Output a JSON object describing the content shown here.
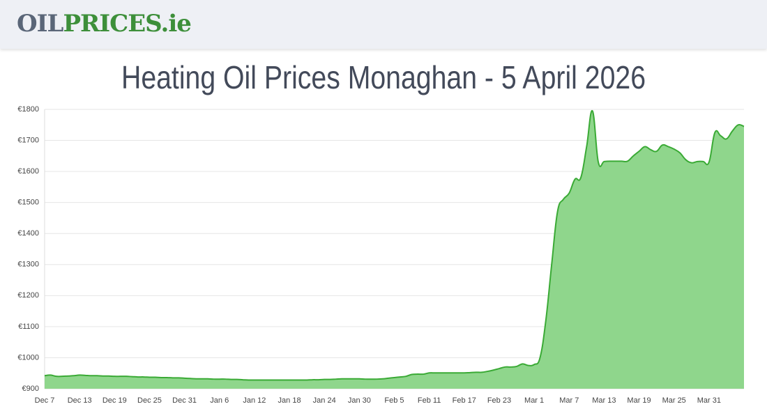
{
  "header": {
    "logo_part1": "OIL",
    "logo_part2": "PRICES.ie"
  },
  "chart_data": {
    "type": "area",
    "title": "Heating Oil Prices Monaghan - 5 April 2026",
    "categories": [
      "Dec 7",
      null,
      null,
      null,
      null,
      null,
      "Dec 13",
      null,
      null,
      null,
      null,
      null,
      "Dec 19",
      null,
      null,
      null,
      null,
      null,
      "Dec 25",
      null,
      null,
      null,
      null,
      null,
      "Dec 31",
      null,
      null,
      null,
      null,
      null,
      "Jan 6",
      null,
      null,
      null,
      null,
      null,
      "Jan 12",
      null,
      null,
      null,
      null,
      null,
      "Jan 18",
      null,
      null,
      null,
      null,
      null,
      "Jan 24",
      null,
      null,
      null,
      null,
      null,
      "Jan 30",
      null,
      null,
      null,
      null,
      null,
      "Feb 5",
      null,
      null,
      null,
      null,
      null,
      "Feb 11",
      null,
      null,
      null,
      null,
      null,
      "Feb 17",
      null,
      null,
      null,
      null,
      null,
      "Feb 23",
      null,
      null,
      null,
      null,
      null,
      "Mar 1",
      null,
      null,
      null,
      null,
      null,
      "Mar 7",
      null,
      null,
      null,
      null,
      null,
      "Mar 13",
      null,
      null,
      null,
      null,
      null,
      "Mar 19",
      null,
      null,
      null,
      null,
      null,
      "Mar 25",
      null,
      null,
      null,
      null,
      null,
      "Mar 31",
      null,
      null,
      null,
      null,
      null,
      null
    ],
    "values": [
      942,
      944,
      940,
      940,
      941,
      942,
      944,
      943,
      942,
      942,
      941,
      941,
      940,
      940,
      940,
      939,
      938,
      938,
      937,
      937,
      936,
      936,
      935,
      935,
      934,
      933,
      932,
      932,
      932,
      931,
      931,
      931,
      930,
      930,
      929,
      928,
      928,
      928,
      928,
      928,
      928,
      928,
      928,
      928,
      928,
      928,
      929,
      929,
      930,
      930,
      931,
      932,
      932,
      932,
      932,
      931,
      931,
      931,
      932,
      934,
      936,
      938,
      940,
      946,
      947,
      947,
      951,
      951,
      951,
      951,
      951,
      951,
      951,
      952,
      953,
      953,
      956,
      960,
      965,
      970,
      970,
      972,
      980,
      975,
      978,
      1000,
      1120,
      1300,
      1470,
      1510,
      1530,
      1575,
      1580,
      1680,
      1795,
      1630,
      1632,
      1633,
      1633,
      1633,
      1633,
      1650,
      1665,
      1680,
      1670,
      1665,
      1685,
      1680,
      1672,
      1660,
      1638,
      1628,
      1632,
      1632,
      1630,
      1725,
      1715,
      1705,
      1730,
      1750,
      1745
    ],
    "color": "#3aaa35",
    "fill": "#8fd68c",
    "ylim": [
      900,
      1800
    ],
    "yticks": [
      {
        "value": 900,
        "label": "€900"
      },
      {
        "value": 1000,
        "label": "€1000"
      },
      {
        "value": 1100,
        "label": "€1100"
      },
      {
        "value": 1200,
        "label": "€1200"
      },
      {
        "value": 1300,
        "label": "€1300"
      },
      {
        "value": 1400,
        "label": "€1400"
      },
      {
        "value": 1500,
        "label": "€1500"
      },
      {
        "value": 1600,
        "label": "€1600"
      },
      {
        "value": 1700,
        "label": "€1700"
      },
      {
        "value": 1800,
        "label": "€1800"
      }
    ],
    "grid": true
  }
}
